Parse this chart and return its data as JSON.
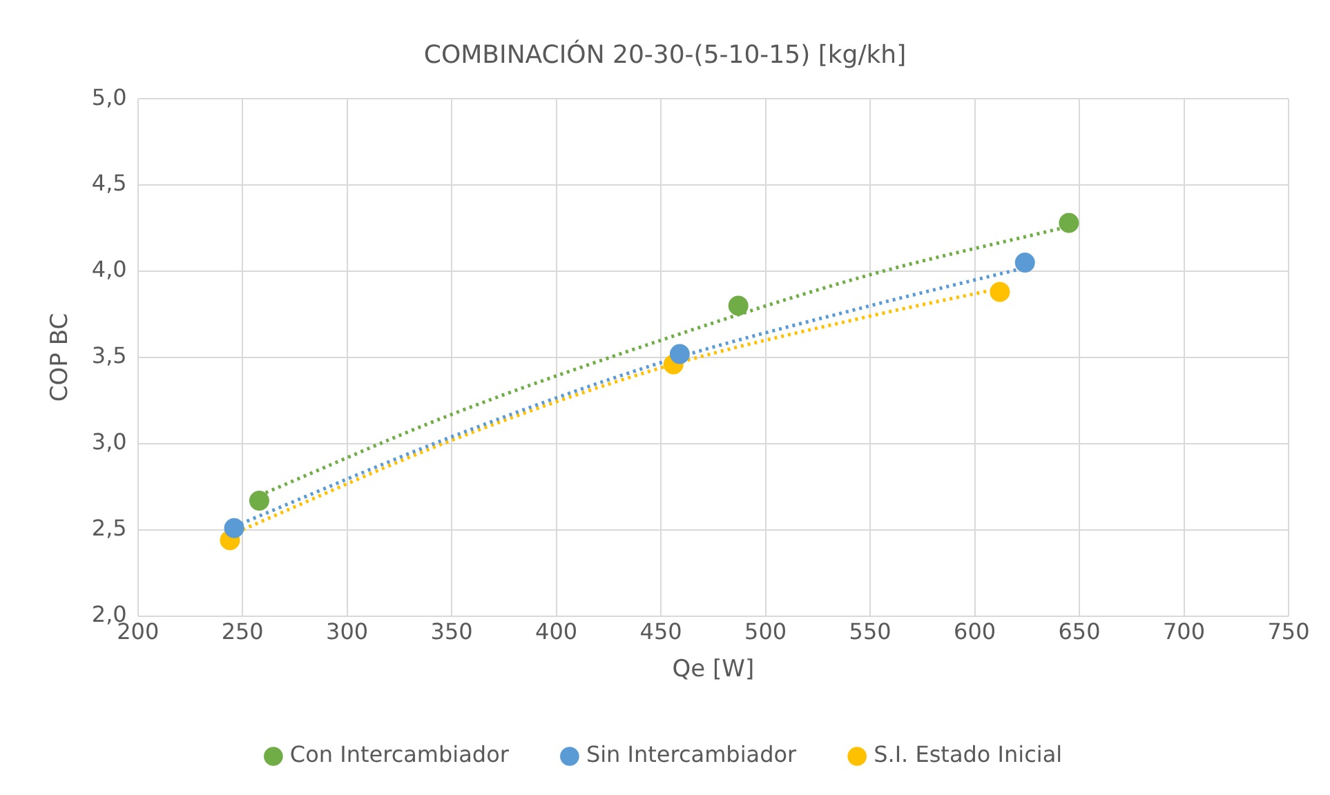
{
  "chart_data": {
    "type": "scatter",
    "title": "COMBINACIÓN 20-30-(5-10-15) [kg/kh]",
    "xlabel": "Qe [W]",
    "ylabel": "COP BC",
    "xlim": [
      200,
      750
    ],
    "xticks": [
      200,
      250,
      300,
      350,
      400,
      450,
      500,
      550,
      600,
      650,
      700,
      750
    ],
    "ylim": [
      2,
      5
    ],
    "yticks": [
      {
        "value": 2,
        "label": "2,0"
      },
      {
        "value": 2.5,
        "label": "2,5"
      },
      {
        "value": 3,
        "label": "3,0"
      },
      {
        "value": 3.5,
        "label": "3,5"
      },
      {
        "value": 4,
        "label": "4,0"
      },
      {
        "value": 4.5,
        "label": "4,5"
      },
      {
        "value": 5,
        "label": "5,0"
      }
    ],
    "grid": true,
    "legend": "bottom",
    "marker": "circle",
    "series": [
      {
        "name": "Con Intercambiador",
        "color": "#70ad47",
        "x": [
          258,
          487,
          645
        ],
        "values": [
          2.67,
          3.8,
          4.28
        ]
      },
      {
        "name": "Sin Intercambiador",
        "color": "#5b9bd5",
        "x": [
          246,
          459,
          624
        ],
        "values": [
          2.51,
          3.52,
          4.05
        ]
      },
      {
        "name": "S.I. Estado Inicial",
        "color": "#ffc000",
        "x": [
          244,
          456,
          612
        ],
        "values": [
          2.44,
          3.46,
          3.88
        ]
      },
      {
        "type": "line",
        "color": "#70ad47",
        "line_style": "dotted",
        "marker": "none",
        "x": [
          258,
          350,
          450,
          550,
          645
        ],
        "values": [
          2.7,
          3.17,
          3.6,
          3.98,
          4.26
        ]
      },
      {
        "type": "line",
        "color": "#5b9bd5",
        "line_style": "dotted",
        "marker": "none",
        "x": [
          246,
          350,
          450,
          550,
          624
        ],
        "values": [
          2.52,
          3.04,
          3.47,
          3.8,
          4.02
        ]
      },
      {
        "type": "line",
        "color": "#ffc000",
        "line_style": "dotted",
        "marker": "none",
        "x": [
          244,
          350,
          450,
          550,
          612
        ],
        "values": [
          2.47,
          3.02,
          3.44,
          3.74,
          3.9
        ]
      }
    ]
  }
}
